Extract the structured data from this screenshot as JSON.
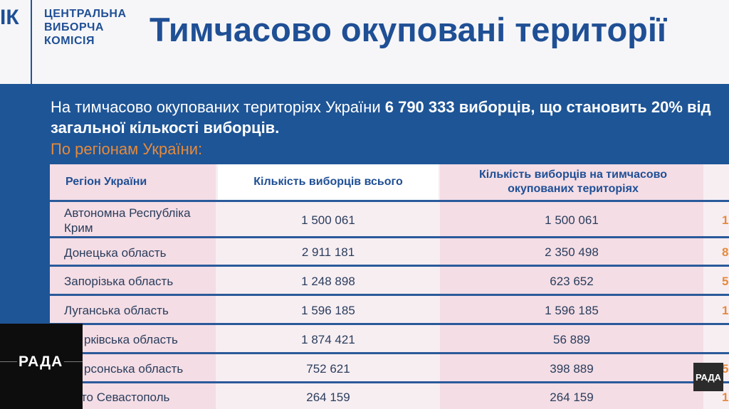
{
  "header": {
    "logo_fragment": "ІК",
    "org_name": [
      "ЦЕНТРАЛЬНА",
      "ВИБОРЧА",
      "КОМІСІЯ"
    ],
    "title": "Тимчасово окуповані території"
  },
  "intro": {
    "text_prefix": "На тимчасово окупованих територіях України ",
    "highlight": "6 790 333 виборців, що становить 20% від загальної кількості виборців.",
    "subheading": "По регіонам України:"
  },
  "table": {
    "headers": {
      "region": "Регіон України",
      "total": "Кількість виборців всього",
      "occupied": "Кількість виборців на тимчасово окупованих територіях"
    },
    "rows": [
      {
        "region": "Автономна Республіка Крим",
        "total": "1 500 061",
        "occupied": "1 500 061",
        "pct": "1"
      },
      {
        "region": "Донецька область",
        "total": "2 911 181",
        "occupied": "2 350 498",
        "pct": "8"
      },
      {
        "region": "Запорізька область",
        "total": "1 248 898",
        "occupied": "623 652",
        "pct": "5"
      },
      {
        "region": "Луганська область",
        "total": "1 596 185",
        "occupied": "1 596 185",
        "pct": "1"
      },
      {
        "region": "рківська область",
        "total": "1 874 421",
        "occupied": "56 889",
        "pct": ""
      },
      {
        "region": "рсонська область",
        "total": "752 621",
        "occupied": "398 889",
        "pct": "5"
      },
      {
        "region": "місто Севастополь",
        "total": "264 159",
        "occupied": "264 159",
        "pct": "1"
      }
    ]
  },
  "overlays": {
    "channel_logo": "РАДА",
    "corner_badge": "РАДА"
  },
  "colors": {
    "brand_blue": "#1e5596",
    "accent_orange": "#e58a3c",
    "table_pink": "#f4dde5"
  }
}
